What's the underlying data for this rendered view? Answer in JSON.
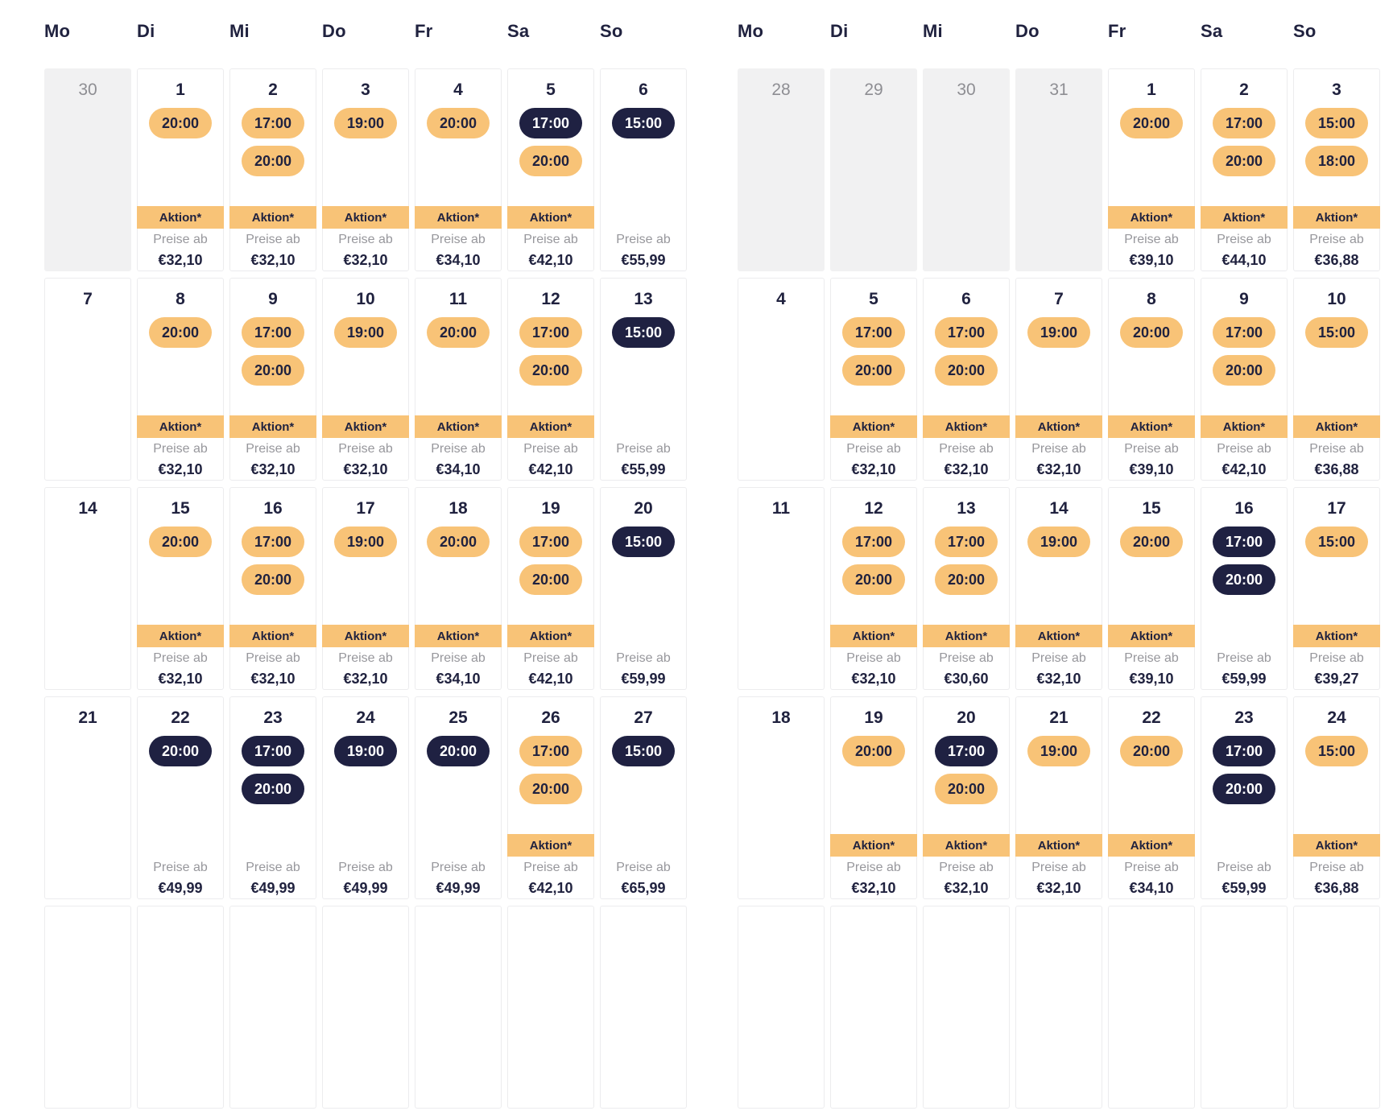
{
  "weekday_headers": [
    "Mo",
    "Di",
    "Mi",
    "Do",
    "Fr",
    "Sa",
    "So"
  ],
  "labels": {
    "aktion": "Aktion*",
    "preise_ab": "Preise ab"
  },
  "colors": {
    "accent": "#F8C377",
    "navy": "#20223F",
    "pill-dark": "#1F2142",
    "muted": "#97979C",
    "othergray": "#F1F1F2",
    "cellborder": "#ECECEE"
  },
  "months": [
    {
      "id": "left",
      "weeks": [
        [
          {
            "day": "30",
            "other": true
          },
          {
            "day": "1",
            "times": [
              {
                "time": "20:00",
                "variant": "orange"
              }
            ],
            "aktion": true,
            "price": "€32,10"
          },
          {
            "day": "2",
            "times": [
              {
                "time": "17:00",
                "variant": "orange"
              },
              {
                "time": "20:00",
                "variant": "orange"
              }
            ],
            "aktion": true,
            "price": "€32,10"
          },
          {
            "day": "3",
            "times": [
              {
                "time": "19:00",
                "variant": "orange"
              }
            ],
            "aktion": true,
            "price": "€32,10"
          },
          {
            "day": "4",
            "times": [
              {
                "time": "20:00",
                "variant": "orange"
              }
            ],
            "aktion": true,
            "price": "€34,10"
          },
          {
            "day": "5",
            "times": [
              {
                "time": "17:00",
                "variant": "dark"
              },
              {
                "time": "20:00",
                "variant": "orange"
              }
            ],
            "aktion": true,
            "price": "€42,10"
          },
          {
            "day": "6",
            "times": [
              {
                "time": "15:00",
                "variant": "dark"
              }
            ],
            "aktion": false,
            "price": "€55,99"
          }
        ],
        [
          {
            "day": "7"
          },
          {
            "day": "8",
            "times": [
              {
                "time": "20:00",
                "variant": "orange"
              }
            ],
            "aktion": true,
            "price": "€32,10"
          },
          {
            "day": "9",
            "times": [
              {
                "time": "17:00",
                "variant": "orange"
              },
              {
                "time": "20:00",
                "variant": "orange"
              }
            ],
            "aktion": true,
            "price": "€32,10"
          },
          {
            "day": "10",
            "times": [
              {
                "time": "19:00",
                "variant": "orange"
              }
            ],
            "aktion": true,
            "price": "€32,10"
          },
          {
            "day": "11",
            "times": [
              {
                "time": "20:00",
                "variant": "orange"
              }
            ],
            "aktion": true,
            "price": "€34,10"
          },
          {
            "day": "12",
            "times": [
              {
                "time": "17:00",
                "variant": "orange"
              },
              {
                "time": "20:00",
                "variant": "orange"
              }
            ],
            "aktion": true,
            "price": "€42,10"
          },
          {
            "day": "13",
            "times": [
              {
                "time": "15:00",
                "variant": "dark"
              }
            ],
            "aktion": false,
            "price": "€55,99"
          }
        ],
        [
          {
            "day": "14"
          },
          {
            "day": "15",
            "times": [
              {
                "time": "20:00",
                "variant": "orange"
              }
            ],
            "aktion": true,
            "price": "€32,10"
          },
          {
            "day": "16",
            "times": [
              {
                "time": "17:00",
                "variant": "orange"
              },
              {
                "time": "20:00",
                "variant": "orange"
              }
            ],
            "aktion": true,
            "price": "€32,10"
          },
          {
            "day": "17",
            "times": [
              {
                "time": "19:00",
                "variant": "orange"
              }
            ],
            "aktion": true,
            "price": "€32,10"
          },
          {
            "day": "18",
            "times": [
              {
                "time": "20:00",
                "variant": "orange"
              }
            ],
            "aktion": true,
            "price": "€34,10"
          },
          {
            "day": "19",
            "times": [
              {
                "time": "17:00",
                "variant": "orange"
              },
              {
                "time": "20:00",
                "variant": "orange"
              }
            ],
            "aktion": true,
            "price": "€42,10"
          },
          {
            "day": "20",
            "times": [
              {
                "time": "15:00",
                "variant": "dark"
              }
            ],
            "aktion": false,
            "price": "€59,99"
          }
        ],
        [
          {
            "day": "21"
          },
          {
            "day": "22",
            "times": [
              {
                "time": "20:00",
                "variant": "dark"
              }
            ],
            "aktion": false,
            "price": "€49,99"
          },
          {
            "day": "23",
            "times": [
              {
                "time": "17:00",
                "variant": "dark"
              },
              {
                "time": "20:00",
                "variant": "dark"
              }
            ],
            "aktion": false,
            "price": "€49,99"
          },
          {
            "day": "24",
            "times": [
              {
                "time": "19:00",
                "variant": "dark"
              }
            ],
            "aktion": false,
            "price": "€49,99"
          },
          {
            "day": "25",
            "times": [
              {
                "time": "20:00",
                "variant": "dark"
              }
            ],
            "aktion": false,
            "price": "€49,99"
          },
          {
            "day": "26",
            "times": [
              {
                "time": "17:00",
                "variant": "orange"
              },
              {
                "time": "20:00",
                "variant": "orange"
              }
            ],
            "aktion": true,
            "price": "€42,10"
          },
          {
            "day": "27",
            "times": [
              {
                "time": "15:00",
                "variant": "dark"
              }
            ],
            "aktion": false,
            "price": "€65,99"
          }
        ]
      ]
    },
    {
      "id": "right",
      "weeks": [
        [
          {
            "day": "28",
            "other": true
          },
          {
            "day": "29",
            "other": true
          },
          {
            "day": "30",
            "other": true
          },
          {
            "day": "31",
            "other": true
          },
          {
            "day": "1",
            "times": [
              {
                "time": "20:00",
                "variant": "orange"
              }
            ],
            "aktion": true,
            "price": "€39,10"
          },
          {
            "day": "2",
            "times": [
              {
                "time": "17:00",
                "variant": "orange"
              },
              {
                "time": "20:00",
                "variant": "orange"
              }
            ],
            "aktion": true,
            "price": "€44,10"
          },
          {
            "day": "3",
            "times": [
              {
                "time": "15:00",
                "variant": "orange"
              },
              {
                "time": "18:00",
                "variant": "orange"
              }
            ],
            "aktion": true,
            "price": "€36,88"
          }
        ],
        [
          {
            "day": "4"
          },
          {
            "day": "5",
            "times": [
              {
                "time": "17:00",
                "variant": "orange"
              },
              {
                "time": "20:00",
                "variant": "orange"
              }
            ],
            "aktion": true,
            "price": "€32,10"
          },
          {
            "day": "6",
            "times": [
              {
                "time": "17:00",
                "variant": "orange"
              },
              {
                "time": "20:00",
                "variant": "orange"
              }
            ],
            "aktion": true,
            "price": "€32,10"
          },
          {
            "day": "7",
            "times": [
              {
                "time": "19:00",
                "variant": "orange"
              }
            ],
            "aktion": true,
            "price": "€32,10"
          },
          {
            "day": "8",
            "times": [
              {
                "time": "20:00",
                "variant": "orange"
              }
            ],
            "aktion": true,
            "price": "€39,10"
          },
          {
            "day": "9",
            "times": [
              {
                "time": "17:00",
                "variant": "orange"
              },
              {
                "time": "20:00",
                "variant": "orange"
              }
            ],
            "aktion": true,
            "price": "€42,10"
          },
          {
            "day": "10",
            "times": [
              {
                "time": "15:00",
                "variant": "orange"
              }
            ],
            "aktion": true,
            "price": "€36,88"
          }
        ],
        [
          {
            "day": "11"
          },
          {
            "day": "12",
            "times": [
              {
                "time": "17:00",
                "variant": "orange"
              },
              {
                "time": "20:00",
                "variant": "orange"
              }
            ],
            "aktion": true,
            "price": "€32,10"
          },
          {
            "day": "13",
            "times": [
              {
                "time": "17:00",
                "variant": "orange"
              },
              {
                "time": "20:00",
                "variant": "orange"
              }
            ],
            "aktion": true,
            "price": "€30,60"
          },
          {
            "day": "14",
            "times": [
              {
                "time": "19:00",
                "variant": "orange"
              }
            ],
            "aktion": true,
            "price": "€32,10"
          },
          {
            "day": "15",
            "times": [
              {
                "time": "20:00",
                "variant": "orange"
              }
            ],
            "aktion": true,
            "price": "€39,10"
          },
          {
            "day": "16",
            "times": [
              {
                "time": "17:00",
                "variant": "dark"
              },
              {
                "time": "20:00",
                "variant": "dark"
              }
            ],
            "aktion": false,
            "price": "€59,99"
          },
          {
            "day": "17",
            "times": [
              {
                "time": "15:00",
                "variant": "orange"
              }
            ],
            "aktion": true,
            "price": "€39,27"
          }
        ],
        [
          {
            "day": "18"
          },
          {
            "day": "19",
            "times": [
              {
                "time": "20:00",
                "variant": "orange"
              }
            ],
            "aktion": true,
            "price": "€32,10"
          },
          {
            "day": "20",
            "times": [
              {
                "time": "17:00",
                "variant": "dark"
              },
              {
                "time": "20:00",
                "variant": "orange"
              }
            ],
            "aktion": true,
            "price": "€32,10"
          },
          {
            "day": "21",
            "times": [
              {
                "time": "19:00",
                "variant": "orange"
              }
            ],
            "aktion": true,
            "price": "€32,10"
          },
          {
            "day": "22",
            "times": [
              {
                "time": "20:00",
                "variant": "orange"
              }
            ],
            "aktion": true,
            "price": "€34,10"
          },
          {
            "day": "23",
            "times": [
              {
                "time": "17:00",
                "variant": "dark"
              },
              {
                "time": "20:00",
                "variant": "dark"
              }
            ],
            "aktion": false,
            "price": "€59,99"
          },
          {
            "day": "24",
            "times": [
              {
                "time": "15:00",
                "variant": "orange"
              }
            ],
            "aktion": true,
            "price": "€36,88"
          }
        ]
      ]
    }
  ]
}
